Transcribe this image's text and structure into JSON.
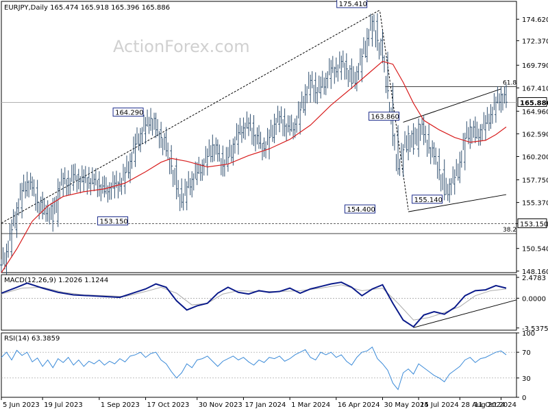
{
  "chart_data": {
    "type": "candlestick",
    "symbol_header": "EURJPY,Daily  165.474 165.918 165.396 165.886",
    "watermark": "ActionForex.com",
    "price_panel": {
      "ylim": [
        148.0,
        176.5
      ],
      "ticks": [
        "174.620",
        "172.370",
        "169.790",
        "167.410",
        "164.960",
        "162.590",
        "160.200",
        "157.750",
        "155.370",
        "153.150",
        "150.540",
        "148.160"
      ],
      "tick_values": [
        174.62,
        172.37,
        169.79,
        167.41,
        164.96,
        162.59,
        160.2,
        157.75,
        155.37,
        153.15,
        150.54,
        148.16
      ],
      "current_price": "165.886",
      "current_value": 165.886,
      "fib_618": {
        "label": "61.8",
        "value": 167.55
      },
      "fib_382": {
        "label": "38.2",
        "value": 152.1
      },
      "support_level": {
        "label": "153.150",
        "value": 153.15
      },
      "annotations": [
        {
          "label": "175.410",
          "date_index": 0.715,
          "value": 175.41
        },
        {
          "label": "164.290",
          "date_index": 0.29,
          "value": 164.29
        },
        {
          "label": "163.860",
          "date_index": 0.78,
          "value": 163.86
        },
        {
          "label": "155.140",
          "date_index": 0.8,
          "value": 155.14
        },
        {
          "label": "154.400",
          "date_index": 0.74,
          "value": 154.4
        },
        {
          "label": "153.150",
          "date_index": 0.28,
          "value": 153.15
        }
      ],
      "price_series": [
        [
          0.0,
          148.8
        ],
        [
          0.01,
          150.2
        ],
        [
          0.02,
          152.5
        ],
        [
          0.03,
          154.8
        ],
        [
          0.04,
          156.6
        ],
        [
          0.05,
          157.5
        ],
        [
          0.06,
          156.9
        ],
        [
          0.07,
          155.4
        ],
        [
          0.08,
          154.2
        ],
        [
          0.09,
          155.0
        ],
        [
          0.1,
          153.4
        ],
        [
          0.11,
          156.8
        ],
        [
          0.12,
          157.9
        ],
        [
          0.13,
          157.2
        ],
        [
          0.14,
          158.3
        ],
        [
          0.15,
          157.6
        ],
        [
          0.16,
          158.0
        ],
        [
          0.17,
          157.4
        ],
        [
          0.18,
          157.8
        ],
        [
          0.19,
          157.1
        ],
        [
          0.2,
          156.5
        ],
        [
          0.21,
          156.9
        ],
        [
          0.22,
          157.4
        ],
        [
          0.23,
          157.1
        ],
        [
          0.24,
          158.5
        ],
        [
          0.25,
          159.7
        ],
        [
          0.26,
          161.5
        ],
        [
          0.27,
          162.6
        ],
        [
          0.28,
          163.5
        ],
        [
          0.29,
          164.2
        ],
        [
          0.3,
          163.0
        ],
        [
          0.31,
          162.2
        ],
        [
          0.32,
          160.8
        ],
        [
          0.33,
          159.2
        ],
        [
          0.34,
          156.8
        ],
        [
          0.35,
          155.4
        ],
        [
          0.36,
          157.0
        ],
        [
          0.37,
          157.8
        ],
        [
          0.38,
          158.5
        ],
        [
          0.39,
          159.3
        ],
        [
          0.4,
          160.2
        ],
        [
          0.41,
          161.4
        ],
        [
          0.42,
          160.5
        ],
        [
          0.43,
          159.2
        ],
        [
          0.44,
          160.1
        ],
        [
          0.45,
          161.5
        ],
        [
          0.46,
          162.7
        ],
        [
          0.47,
          163.2
        ],
        [
          0.48,
          163.7
        ],
        [
          0.49,
          162.4
        ],
        [
          0.5,
          161.6
        ],
        [
          0.51,
          161.0
        ],
        [
          0.52,
          162.2
        ],
        [
          0.53,
          163.6
        ],
        [
          0.54,
          164.4
        ],
        [
          0.55,
          163.4
        ],
        [
          0.56,
          163.0
        ],
        [
          0.57,
          163.6
        ],
        [
          0.58,
          165.1
        ],
        [
          0.59,
          166.7
        ],
        [
          0.6,
          168.2
        ],
        [
          0.61,
          166.9
        ],
        [
          0.62,
          167.5
        ],
        [
          0.63,
          168.4
        ],
        [
          0.64,
          169.5
        ],
        [
          0.65,
          169.1
        ],
        [
          0.66,
          170.2
        ],
        [
          0.67,
          169.4
        ],
        [
          0.68,
          167.9
        ],
        [
          0.69,
          169.1
        ],
        [
          0.7,
          170.7
        ],
        [
          0.71,
          172.6
        ],
        [
          0.72,
          174.4
        ],
        [
          0.73,
          172.4
        ],
        [
          0.74,
          170.6
        ],
        [
          0.75,
          167.1
        ],
        [
          0.76,
          162.4
        ],
        [
          0.77,
          158.9
        ],
        [
          0.78,
          160.9
        ],
        [
          0.79,
          162.6
        ],
        [
          0.8,
          161.0
        ],
        [
          0.81,
          163.6
        ],
        [
          0.82,
          162.5
        ],
        [
          0.83,
          161.1
        ],
        [
          0.84,
          160.2
        ],
        [
          0.85,
          158.8
        ],
        [
          0.86,
          156.2
        ],
        [
          0.87,
          157.3
        ],
        [
          0.88,
          158.0
        ],
        [
          0.89,
          159.6
        ],
        [
          0.9,
          162.1
        ],
        [
          0.91,
          163.3
        ],
        [
          0.92,
          162.2
        ],
        [
          0.93,
          163.0
        ],
        [
          0.94,
          163.7
        ],
        [
          0.95,
          164.6
        ],
        [
          0.96,
          165.9
        ],
        [
          0.97,
          166.7
        ],
        [
          0.98,
          165.9
        ]
      ],
      "ma_series": [
        [
          0.0,
          148.0
        ],
        [
          0.03,
          150.5
        ],
        [
          0.06,
          153.4
        ],
        [
          0.09,
          155.0
        ],
        [
          0.12,
          156.0
        ],
        [
          0.16,
          156.5
        ],
        [
          0.2,
          156.8
        ],
        [
          0.24,
          157.4
        ],
        [
          0.28,
          158.6
        ],
        [
          0.31,
          159.6
        ],
        [
          0.33,
          160.0
        ],
        [
          0.36,
          159.7
        ],
        [
          0.4,
          159.1
        ],
        [
          0.44,
          159.4
        ],
        [
          0.48,
          160.3
        ],
        [
          0.52,
          161.0
        ],
        [
          0.56,
          162.0
        ],
        [
          0.6,
          163.5
        ],
        [
          0.64,
          165.6
        ],
        [
          0.68,
          167.4
        ],
        [
          0.71,
          168.8
        ],
        [
          0.74,
          170.2
        ],
        [
          0.76,
          169.9
        ],
        [
          0.78,
          168.0
        ],
        [
          0.8,
          165.8
        ],
        [
          0.82,
          164.0
        ],
        [
          0.85,
          163.0
        ],
        [
          0.88,
          162.2
        ],
        [
          0.91,
          161.7
        ],
        [
          0.94,
          161.9
        ],
        [
          0.96,
          162.5
        ],
        [
          0.98,
          163.3
        ]
      ]
    },
    "macd_panel": {
      "label": "MACD(12,26,9) 1.2026 1.1244",
      "ylim": [
        -3.8,
        2.8
      ],
      "ticks": [
        "2.4783",
        "0.0000",
        "-3.5375"
      ],
      "tick_values": [
        2.4783,
        0.0,
        -3.5375
      ],
      "macd_series": [
        [
          0.0,
          0.6
        ],
        [
          0.03,
          1.3
        ],
        [
          0.05,
          1.8
        ],
        [
          0.08,
          1.2
        ],
        [
          0.11,
          0.7
        ],
        [
          0.14,
          0.4
        ],
        [
          0.17,
          0.3
        ],
        [
          0.2,
          0.2
        ],
        [
          0.23,
          0.1
        ],
        [
          0.25,
          0.5
        ],
        [
          0.28,
          1.1
        ],
        [
          0.3,
          1.7
        ],
        [
          0.32,
          1.3
        ],
        [
          0.34,
          -0.3
        ],
        [
          0.36,
          -1.4
        ],
        [
          0.38,
          -0.9
        ],
        [
          0.4,
          -0.6
        ],
        [
          0.42,
          0.6
        ],
        [
          0.44,
          1.3
        ],
        [
          0.46,
          0.7
        ],
        [
          0.48,
          0.5
        ],
        [
          0.5,
          0.9
        ],
        [
          0.52,
          0.7
        ],
        [
          0.54,
          0.8
        ],
        [
          0.56,
          1.2
        ],
        [
          0.58,
          0.6
        ],
        [
          0.6,
          1.1
        ],
        [
          0.62,
          1.4
        ],
        [
          0.64,
          1.7
        ],
        [
          0.66,
          1.9
        ],
        [
          0.68,
          1.3
        ],
        [
          0.7,
          0.3
        ],
        [
          0.72,
          1.1
        ],
        [
          0.74,
          1.6
        ],
        [
          0.76,
          -0.6
        ],
        [
          0.78,
          -2.6
        ],
        [
          0.8,
          -3.4
        ],
        [
          0.82,
          -2.0
        ],
        [
          0.84,
          -1.6
        ],
        [
          0.86,
          -1.9
        ],
        [
          0.88,
          -1.1
        ],
        [
          0.9,
          0.3
        ],
        [
          0.92,
          0.9
        ],
        [
          0.94,
          1.0
        ],
        [
          0.96,
          1.5
        ],
        [
          0.98,
          1.2
        ]
      ],
      "signal_series": [
        [
          0.0,
          0.5
        ],
        [
          0.04,
          1.2
        ],
        [
          0.08,
          1.3
        ],
        [
          0.12,
          0.7
        ],
        [
          0.16,
          0.4
        ],
        [
          0.2,
          0.3
        ],
        [
          0.24,
          0.2
        ],
        [
          0.28,
          0.8
        ],
        [
          0.31,
          1.3
        ],
        [
          0.34,
          0.6
        ],
        [
          0.37,
          -0.8
        ],
        [
          0.4,
          -0.6
        ],
        [
          0.43,
          0.5
        ],
        [
          0.46,
          0.9
        ],
        [
          0.5,
          0.8
        ],
        [
          0.54,
          0.8
        ],
        [
          0.58,
          0.9
        ],
        [
          0.62,
          1.2
        ],
        [
          0.66,
          1.6
        ],
        [
          0.7,
          0.9
        ],
        [
          0.74,
          1.2
        ],
        [
          0.77,
          -0.6
        ],
        [
          0.8,
          -2.6
        ],
        [
          0.83,
          -2.3
        ],
        [
          0.86,
          -1.7
        ],
        [
          0.89,
          -1.0
        ],
        [
          0.92,
          0.3
        ],
        [
          0.95,
          0.9
        ],
        [
          0.98,
          1.1
        ]
      ]
    },
    "rsi_panel": {
      "label": "RSI(14) 63.3859",
      "ylim": [
        0,
        100
      ],
      "ticks": [
        "100",
        "70",
        "30",
        "0"
      ],
      "tick_values": [
        100,
        70,
        30,
        0
      ],
      "rsi_series": [
        [
          0.0,
          62
        ],
        [
          0.01,
          70
        ],
        [
          0.02,
          58
        ],
        [
          0.03,
          73
        ],
        [
          0.04,
          65
        ],
        [
          0.05,
          70
        ],
        [
          0.06,
          55
        ],
        [
          0.07,
          61
        ],
        [
          0.08,
          48
        ],
        [
          0.09,
          58
        ],
        [
          0.1,
          46
        ],
        [
          0.11,
          60
        ],
        [
          0.12,
          54
        ],
        [
          0.13,
          62
        ],
        [
          0.14,
          50
        ],
        [
          0.15,
          58
        ],
        [
          0.16,
          48
        ],
        [
          0.17,
          56
        ],
        [
          0.18,
          52
        ],
        [
          0.19,
          58
        ],
        [
          0.2,
          50
        ],
        [
          0.21,
          56
        ],
        [
          0.22,
          52
        ],
        [
          0.23,
          60
        ],
        [
          0.24,
          55
        ],
        [
          0.25,
          64
        ],
        [
          0.26,
          66
        ],
        [
          0.27,
          70
        ],
        [
          0.28,
          62
        ],
        [
          0.29,
          68
        ],
        [
          0.3,
          70
        ],
        [
          0.31,
          58
        ],
        [
          0.32,
          52
        ],
        [
          0.33,
          40
        ],
        [
          0.34,
          30
        ],
        [
          0.35,
          38
        ],
        [
          0.36,
          52
        ],
        [
          0.37,
          46
        ],
        [
          0.38,
          58
        ],
        [
          0.39,
          60
        ],
        [
          0.4,
          64
        ],
        [
          0.41,
          56
        ],
        [
          0.42,
          48
        ],
        [
          0.43,
          56
        ],
        [
          0.44,
          60
        ],
        [
          0.45,
          64
        ],
        [
          0.46,
          58
        ],
        [
          0.47,
          62
        ],
        [
          0.48,
          55
        ],
        [
          0.49,
          50
        ],
        [
          0.5,
          58
        ],
        [
          0.51,
          54
        ],
        [
          0.52,
          62
        ],
        [
          0.53,
          60
        ],
        [
          0.54,
          64
        ],
        [
          0.55,
          56
        ],
        [
          0.56,
          60
        ],
        [
          0.57,
          66
        ],
        [
          0.58,
          70
        ],
        [
          0.59,
          74
        ],
        [
          0.6,
          62
        ],
        [
          0.61,
          58
        ],
        [
          0.62,
          70
        ],
        [
          0.63,
          66
        ],
        [
          0.64,
          70
        ],
        [
          0.65,
          62
        ],
        [
          0.66,
          66
        ],
        [
          0.67,
          56
        ],
        [
          0.68,
          50
        ],
        [
          0.69,
          62
        ],
        [
          0.7,
          70
        ],
        [
          0.71,
          72
        ],
        [
          0.72,
          78
        ],
        [
          0.73,
          60
        ],
        [
          0.74,
          52
        ],
        [
          0.75,
          42
        ],
        [
          0.76,
          22
        ],
        [
          0.77,
          12
        ],
        [
          0.78,
          38
        ],
        [
          0.79,
          44
        ],
        [
          0.8,
          36
        ],
        [
          0.81,
          52
        ],
        [
          0.82,
          46
        ],
        [
          0.83,
          40
        ],
        [
          0.84,
          34
        ],
        [
          0.85,
          30
        ],
        [
          0.86,
          24
        ],
        [
          0.87,
          36
        ],
        [
          0.88,
          42
        ],
        [
          0.89,
          48
        ],
        [
          0.9,
          58
        ],
        [
          0.91,
          62
        ],
        [
          0.92,
          54
        ],
        [
          0.93,
          60
        ],
        [
          0.94,
          62
        ],
        [
          0.95,
          66
        ],
        [
          0.96,
          70
        ],
        [
          0.97,
          72
        ],
        [
          0.98,
          66
        ]
      ]
    },
    "x_ticks": [
      {
        "label": "5 Jun 2023",
        "pos": 0.0
      },
      {
        "label": "19 Jul 2023",
        "pos": 0.08
      },
      {
        "label": "1 Sep 2023",
        "pos": 0.19
      },
      {
        "label": "17 Oct 2023",
        "pos": 0.28
      },
      {
        "label": "30 Nov 2023",
        "pos": 0.38
      },
      {
        "label": "17 Jan 2024",
        "pos": 0.47
      },
      {
        "label": "1 Mar 2024",
        "pos": 0.56
      },
      {
        "label": "16 Apr 2024",
        "pos": 0.65
      },
      {
        "label": "30 May 2024",
        "pos": 0.74
      },
      {
        "label": "15 Jul 2024",
        "pos": 0.81
      },
      {
        "label": "28 Aug 2024",
        "pos": 0.89
      },
      {
        "label": "11 Oct 2024",
        "pos": 0.97
      }
    ],
    "colors": {
      "candle": "#2f4f6f",
      "ma": "#d81c1c",
      "macd": "#0a1a8a",
      "signal": "#aaaaaa",
      "rsi": "#3a8ad8",
      "trend": "#000000"
    }
  }
}
